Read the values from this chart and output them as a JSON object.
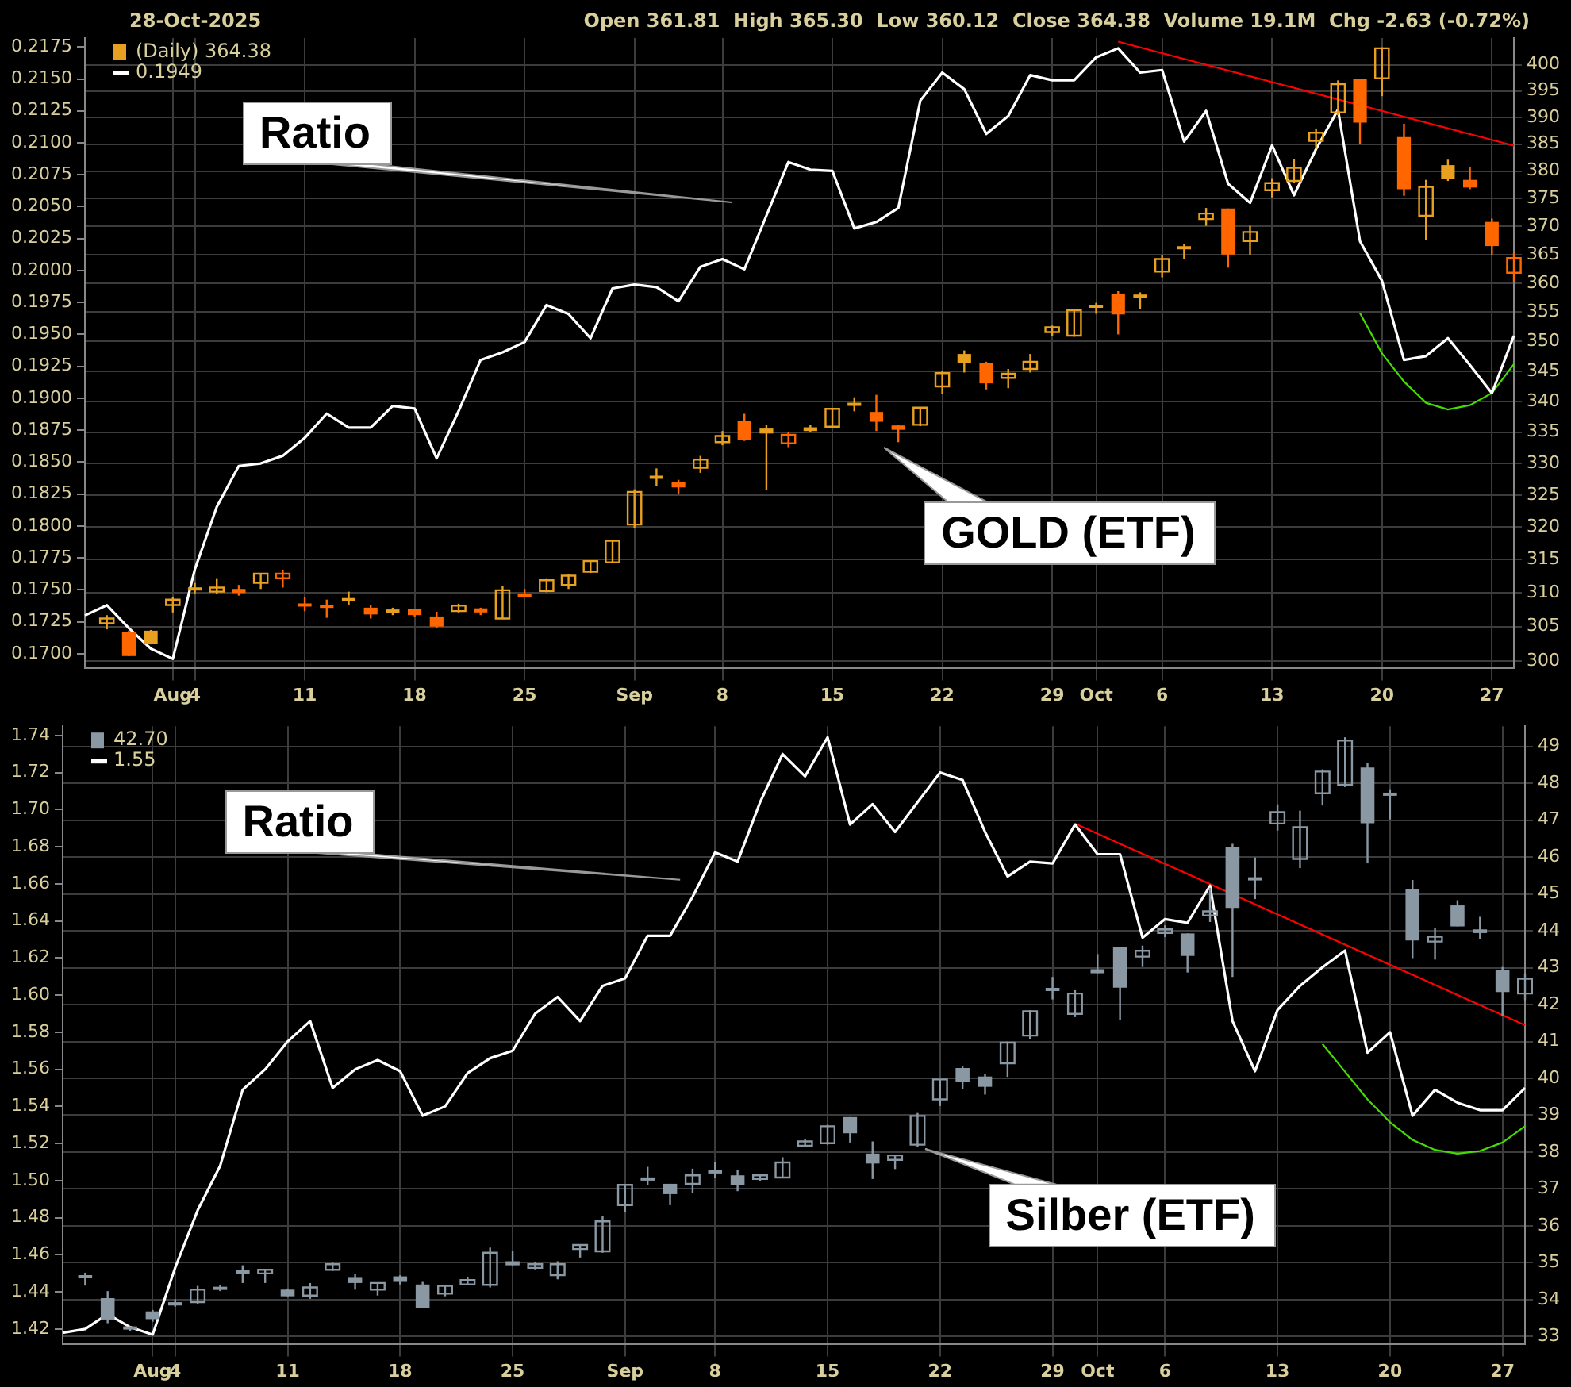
{
  "chart_data": [
    {
      "type": "candlestick",
      "log": "y2",
      "grid": true,
      "legend": "top left",
      "categories": [
        null,
        null,
        null,
        null,
        "Aug",
        "4",
        null,
        null,
        null,
        null,
        "11",
        null,
        null,
        null,
        null,
        "18",
        null,
        null,
        null,
        null,
        "25",
        null,
        null,
        null,
        null,
        "Sep",
        null,
        null,
        null,
        "8",
        null,
        null,
        null,
        null,
        "15",
        null,
        null,
        null,
        null,
        "22",
        null,
        null,
        null,
        null,
        "29",
        null,
        "Oct",
        null,
        null,
        "6",
        null,
        null,
        null,
        null,
        "13",
        null,
        null,
        null,
        null,
        "20",
        null,
        null,
        null,
        null,
        "27",
        null
      ],
      "ylim": [
        0.1689,
        0.2182
      ],
      "yticks": [
        {
          "value": 0.17,
          "label": "0.1700"
        },
        {
          "value": 0.1725,
          "label": "0.1725"
        },
        {
          "value": 0.175,
          "label": "0.1750"
        },
        {
          "value": 0.1775,
          "label": "0.1775"
        },
        {
          "value": 0.18,
          "label": "0.1800"
        },
        {
          "value": 0.1825,
          "label": "0.1825"
        },
        {
          "value": 0.185,
          "label": "0.1850"
        },
        {
          "value": 0.1875,
          "label": "0.1875"
        },
        {
          "value": 0.19,
          "label": "0.1900"
        },
        {
          "value": 0.1925,
          "label": "0.1925"
        },
        {
          "value": 0.195,
          "label": "0.1950"
        },
        {
          "value": 0.1975,
          "label": "0.1975"
        },
        {
          "value": 0.2,
          "label": "0.2000"
        },
        {
          "value": 0.2025,
          "label": "0.2025"
        },
        {
          "value": 0.205,
          "label": "0.2050"
        },
        {
          "value": 0.2075,
          "label": "0.2075"
        },
        {
          "value": 0.21,
          "label": "0.2100"
        },
        {
          "value": 0.2125,
          "label": "0.2125"
        },
        {
          "value": 0.215,
          "label": "0.2150"
        },
        {
          "value": 0.2175,
          "label": "0.2175"
        }
      ],
      "y2lim": [
        299,
        405.2
      ],
      "y2ticks": [
        300,
        305,
        310,
        315,
        320,
        325,
        330,
        335,
        340,
        345,
        350,
        355,
        360,
        365,
        370,
        375,
        380,
        385,
        390,
        395,
        400
      ],
      "annotations": [
        "28-Oct-2025",
        "Open 361.81  High 365.30  Low 360.12  Close 364.38  Volume 19.1M  Chg -2.63 (-0.72%)",
        "Ratio",
        "GOLD (ETF)"
      ],
      "series": [
        {
          "name": "(Daily) 364.38",
          "axis": "y2",
          "color": "#e8a020",
          "ohlc": [
            null,
            [
              305.5,
              306.7,
              304.6,
              306.2
            ],
            [
              304.2,
              304.4,
              300.7,
              300.7
            ],
            [
              304.4,
              304.5,
              302.4,
              302.5
            ],
            [
              308.2,
              309.4,
              307.1,
              309.0
            ],
            [
              310.6,
              311.5,
              309.8,
              310.6
            ],
            [
              310.2,
              312.1,
              309.8,
              310.8
            ],
            [
              310.6,
              311.2,
              309.6,
              310.0
            ],
            [
              311.5,
              312.9,
              310.6,
              312.9
            ],
            [
              312.2,
              313.5,
              310.8,
              312.9
            ],
            [
              308.2,
              309.4,
              307.3,
              308.2
            ],
            [
              308.0,
              309.0,
              306.3,
              308.0
            ],
            [
              309.0,
              310.2,
              308.2,
              309.0
            ],
            [
              307.8,
              308.2,
              306.2,
              306.8
            ],
            [
              307.3,
              307.8,
              306.7,
              307.3
            ],
            [
              307.6,
              307.6,
              306.5,
              306.7
            ],
            [
              306.5,
              307.2,
              304.8,
              305.0
            ],
            [
              307.3,
              308.4,
              307.1,
              308.1
            ],
            [
              307.7,
              307.8,
              306.7,
              307.1
            ],
            [
              306.2,
              311.0,
              306.2,
              310.4
            ],
            [
              309.8,
              310.6,
              309.4,
              309.5
            ],
            [
              310.3,
              312.1,
              310.1,
              311.9
            ],
            [
              311.2,
              312.8,
              310.6,
              312.6
            ],
            [
              313.2,
              314.8,
              313.0,
              314.8
            ],
            [
              314.6,
              317.9,
              314.6,
              317.9
            ],
            [
              320.4,
              325.9,
              319.9,
              325.5
            ],
            [
              327.8,
              329.2,
              326.4,
              327.8
            ],
            [
              327.0,
              327.4,
              325.2,
              326.2
            ],
            [
              329.3,
              331.2,
              328.5,
              330.6
            ],
            [
              333.4,
              335.2,
              332.9,
              334.4
            ],
            [
              336.8,
              338.0,
              333.6,
              333.8
            ],
            [
              335.6,
              336.2,
              325.8,
              334.8
            ],
            [
              333.2,
              335.0,
              332.6,
              334.6
            ],
            [
              335.8,
              336.2,
              335.0,
              335.2
            ],
            [
              335.9,
              338.8,
              335.9,
              338.8
            ],
            [
              339.8,
              340.7,
              338.4,
              339.3
            ],
            [
              338.3,
              341.1,
              335.2,
              336.7
            ],
            [
              336.1,
              336.1,
              333.4,
              335.4
            ],
            [
              336.2,
              339.0,
              336.0,
              339.0
            ],
            [
              342.5,
              345.0,
              341.3,
              344.7
            ],
            [
              347.9,
              348.5,
              344.8,
              346.4
            ],
            [
              346.4,
              346.6,
              342.0,
              343.0
            ],
            [
              343.9,
              345.4,
              342.2,
              344.6
            ],
            [
              345.4,
              347.9,
              344.8,
              346.6
            ],
            [
              351.6,
              352.7,
              351.0,
              352.4
            ],
            [
              351.0,
              355.4,
              350.8,
              355.3
            ],
            [
              356.0,
              356.6,
              354.7,
              356.0
            ],
            [
              358.2,
              358.6,
              351.2,
              354.6
            ],
            [
              357.5,
              358.4,
              355.5,
              358.0
            ],
            [
              362.0,
              364.9,
              361.0,
              364.2
            ],
            [
              366.2,
              366.9,
              364.2,
              366.2
            ],
            [
              371.3,
              373.3,
              370.1,
              372.3
            ],
            [
              373.2,
              373.2,
              362.7,
              365.0
            ],
            [
              367.4,
              370.1,
              365.0,
              369.0
            ],
            [
              376.5,
              378.7,
              375.2,
              377.8
            ],
            [
              378.2,
              382.2,
              377.8,
              380.6
            ],
            [
              385.6,
              387.9,
              384.1,
              387.1
            ],
            [
              390.9,
              397.0,
              390.4,
              396.3
            ],
            [
              397.3,
              397.3,
              385.0,
              389.0
            ],
            [
              397.4,
              403.4,
              394.0,
              403.2
            ],
            [
              386.3,
              388.8,
              375.5,
              376.7
            ],
            [
              371.9,
              378.4,
              367.5,
              377.1
            ],
            [
              381.1,
              382.1,
              378.2,
              378.5
            ],
            [
              378.4,
              380.8,
              376.7,
              377.0
            ],
            [
              370.8,
              371.4,
              365.0,
              366.5
            ],
            [
              361.81,
              365.3,
              360.12,
              364.38
            ]
          ],
          "colors": [
            null,
            "#e8a020",
            "#ff6600",
            "#e8a020",
            "#e8a020",
            "#e8a020",
            "#e8a020",
            "#ff6600",
            "#e8a020",
            "#ff6600",
            "#ff6600",
            "#ff6600",
            "#e8a020",
            "#ff6600",
            "#e8a020",
            "#ff6600",
            "#ff6600",
            "#e8a020",
            "#ff6600",
            "#e8a020",
            "#ff6600",
            "#e8a020",
            "#e8a020",
            "#e8a020",
            "#e8a020",
            "#e8a020",
            "#e8a020",
            "#ff6600",
            "#e8a020",
            "#e8a020",
            "#ff6600",
            "#e8a020",
            "#ff6600",
            "#e8a020",
            "#e8a020",
            "#e8a020",
            "#ff6600",
            "#ff6600",
            "#e8a020",
            "#e8a020",
            "#e8a020",
            "#ff6600",
            "#e8a020",
            "#e8a020",
            "#e8a020",
            "#e8a020",
            "#e8a020",
            "#ff6600",
            "#e8a020",
            "#e8a020",
            "#e8a020",
            "#e8a020",
            "#ff6600",
            "#e8a020",
            "#e8a020",
            "#e8a020",
            "#e8a020",
            "#e8a020",
            "#ff6600",
            "#e8a020",
            "#ff6600",
            "#e8a020",
            "#e8a020",
            "#ff6600",
            "#ff6600",
            "#ff6600"
          ]
        },
        {
          "type": "line",
          "name": "0.1949",
          "color": "#ffffff",
          "values": [
            0.173,
            0.1738,
            0.172,
            0.1704,
            0.1696,
            0.1766,
            0.1815,
            0.1847,
            0.1849,
            0.1855,
            0.1869,
            0.1888,
            0.1877,
            0.1877,
            0.1894,
            0.1892,
            0.1853,
            0.189,
            0.193,
            0.1936,
            0.1944,
            0.1973,
            0.1966,
            0.1947,
            0.1986,
            0.1989,
            0.1987,
            0.1976,
            0.2003,
            0.2009,
            0.2001,
            0.2043,
            0.2085,
            0.2079,
            0.2078,
            0.2033,
            0.2038,
            0.2049,
            0.2133,
            0.2155,
            0.2142,
            0.2107,
            0.2121,
            0.2153,
            0.2149,
            0.2149,
            0.2167,
            0.2174,
            0.2155,
            0.2157,
            0.2101,
            0.2125,
            0.2068,
            0.2053,
            0.2098,
            0.2059,
            0.2095,
            0.2126,
            0.2023,
            0.1992,
            0.193,
            0.1933,
            0.1947,
            0.1926,
            0.1904,
            0.1949
          ]
        },
        {
          "type": "line",
          "axis": "y2",
          "color": "#ff0000",
          "values": [
            null,
            null,
            null,
            null,
            null,
            null,
            null,
            null,
            null,
            null,
            null,
            null,
            null,
            null,
            null,
            null,
            null,
            null,
            null,
            null,
            null,
            null,
            null,
            null,
            null,
            null,
            null,
            null,
            null,
            null,
            null,
            null,
            null,
            null,
            null,
            null,
            null,
            null,
            null,
            null,
            null,
            null,
            null,
            null,
            null,
            null,
            null,
            404.5,
            null,
            null,
            null,
            null,
            null,
            null,
            null,
            null,
            null,
            null,
            null,
            null,
            null,
            null,
            null,
            null,
            null,
            384.7
          ]
        },
        {
          "type": "line",
          "axis": "y2",
          "color": "#44dd00",
          "values": [
            null,
            null,
            null,
            null,
            null,
            null,
            null,
            null,
            null,
            null,
            null,
            null,
            null,
            null,
            null,
            null,
            null,
            null,
            null,
            null,
            null,
            null,
            null,
            null,
            null,
            null,
            null,
            null,
            null,
            null,
            null,
            null,
            null,
            null,
            null,
            null,
            null,
            null,
            null,
            null,
            null,
            null,
            null,
            null,
            null,
            null,
            null,
            null,
            null,
            null,
            null,
            null,
            null,
            null,
            null,
            null,
            null,
            null,
            354.8,
            348.0,
            343.3,
            339.8,
            338.7,
            339.4,
            341.4,
            346.2
          ]
        }
      ]
    },
    {
      "type": "candlestick",
      "grid": true,
      "legend": "top left",
      "categories": [
        null,
        null,
        null,
        null,
        "Aug",
        "4",
        null,
        null,
        null,
        null,
        "11",
        null,
        null,
        null,
        null,
        "18",
        null,
        null,
        null,
        null,
        "25",
        null,
        null,
        null,
        null,
        "Sep",
        null,
        null,
        null,
        "8",
        null,
        null,
        null,
        null,
        "15",
        null,
        null,
        null,
        null,
        "22",
        null,
        null,
        null,
        null,
        "29",
        null,
        "Oct",
        null,
        null,
        "6",
        null,
        null,
        null,
        null,
        "13",
        null,
        null,
        null,
        null,
        "20",
        null,
        null,
        null,
        null,
        "27",
        null
      ],
      "ylim": [
        1.412,
        1.745
      ],
      "yticks": [
        1.42,
        1.44,
        1.46,
        1.48,
        {
          "value": 1.5,
          "label": "1.50"
        },
        1.52,
        1.54,
        1.56,
        1.58,
        {
          "value": 1.6,
          "label": "1.60"
        },
        1.62,
        1.64,
        1.66,
        1.68,
        {
          "value": 1.7,
          "label": "1.70"
        },
        1.72,
        1.74
      ],
      "y2lim": [
        32.8,
        49.55
      ],
      "y2ticks": [
        33,
        34,
        35,
        36,
        37,
        38,
        39,
        40,
        41,
        42,
        43,
        44,
        45,
        46,
        47,
        48,
        49
      ],
      "annotations": [
        "Ratio",
        "Silber (ETF)"
      ],
      "series": [
        {
          "name": "42.70",
          "axis": "y2",
          "color": "#8a98a4",
          "ohlc": [
            null,
            [
              34.62,
              34.73,
              34.38,
              34.62
            ],
            [
              34.04,
              34.23,
              33.36,
              33.46
            ],
            [
              33.23,
              33.27,
              33.14,
              33.23
            ],
            [
              33.68,
              33.72,
              33.4,
              33.47
            ],
            [
              33.93,
              34.01,
              33.81,
              33.84
            ],
            [
              33.93,
              34.37,
              33.89,
              34.27
            ],
            [
              34.34,
              34.4,
              34.23,
              34.27
            ],
            [
              34.8,
              34.93,
              34.45,
              34.69
            ],
            [
              34.71,
              34.81,
              34.45,
              34.81
            ],
            [
              34.27,
              34.3,
              34.09,
              34.09
            ],
            [
              34.11,
              34.45,
              34.02,
              34.33
            ],
            [
              34.81,
              35.0,
              34.78,
              34.96
            ],
            [
              34.59,
              34.7,
              34.27,
              34.45
            ],
            [
              34.27,
              34.45,
              34.11,
              34.45
            ],
            [
              34.63,
              34.66,
              34.41,
              34.48
            ],
            [
              34.41,
              34.48,
              33.78,
              33.78
            ],
            [
              34.16,
              34.37,
              34.09,
              34.37
            ],
            [
              34.41,
              34.62,
              34.41,
              34.53
            ],
            [
              34.4,
              35.41,
              34.33,
              35.27
            ],
            [
              35.04,
              35.31,
              34.93,
              34.93
            ],
            [
              34.86,
              35.03,
              34.82,
              34.96
            ],
            [
              34.66,
              35.04,
              34.55,
              34.96
            ],
            [
              35.37,
              35.48,
              35.14,
              35.48
            ],
            [
              35.31,
              36.26,
              35.27,
              36.12
            ],
            [
              36.56,
              37.11,
              36.38,
              37.11
            ],
            [
              37.27,
              37.6,
              37.1,
              37.27
            ],
            [
              37.14,
              37.14,
              36.56,
              36.86
            ],
            [
              37.14,
              37.55,
              36.9,
              37.37
            ],
            [
              37.51,
              37.74,
              37.31,
              37.42
            ],
            [
              37.37,
              37.51,
              36.94,
              37.1
            ],
            [
              37.27,
              37.37,
              37.21,
              37.37
            ],
            [
              37.31,
              37.86,
              37.29,
              37.72
            ],
            [
              38.17,
              38.36,
              38.13,
              38.29
            ],
            [
              38.24,
              38.74,
              38.2,
              38.7
            ],
            [
              38.95,
              38.95,
              38.26,
              38.51
            ],
            [
              37.96,
              38.29,
              37.27,
              37.69
            ],
            [
              37.79,
              37.91,
              37.54,
              37.91
            ],
            [
              38.2,
              39.06,
              38.13,
              38.98
            ],
            [
              39.43,
              39.97,
              39.25,
              39.97
            ],
            [
              40.28,
              40.32,
              39.7,
              39.91
            ],
            [
              40.05,
              40.12,
              39.56,
              39.77
            ],
            [
              40.41,
              41.0,
              40.04,
              40.97
            ],
            [
              41.16,
              41.85,
              41.07,
              41.82
            ],
            [
              42.41,
              42.75,
              42.14,
              42.41
            ],
            [
              41.75,
              42.39,
              41.66,
              42.3
            ],
            [
              42.96,
              43.37,
              42.85,
              42.85
            ],
            [
              43.56,
              43.56,
              41.59,
              42.46
            ],
            [
              43.3,
              43.6,
              43.02,
              43.46
            ],
            [
              43.94,
              44.15,
              43.83,
              44.04
            ],
            [
              43.93,
              43.93,
              42.87,
              43.32
            ],
            [
              44.42,
              45.17,
              44.24,
              44.53
            ],
            [
              46.26,
              46.36,
              42.75,
              44.62
            ],
            [
              45.44,
              45.99,
              44.86,
              45.38
            ],
            [
              46.91,
              47.43,
              46.72,
              47.22
            ],
            [
              45.95,
              47.26,
              45.7,
              46.81
            ],
            [
              47.73,
              48.38,
              47.4,
              48.32
            ],
            [
              47.96,
              49.25,
              47.9,
              49.16
            ],
            [
              48.43,
              48.55,
              45.83,
              46.92
            ],
            [
              47.74,
              47.84,
              47.02,
              47.67
            ],
            [
              45.14,
              45.38,
              43.26,
              43.74
            ],
            [
              43.71,
              44.08,
              43.22,
              43.84
            ],
            [
              44.69,
              44.83,
              44.12,
              44.12
            ],
            [
              44.04,
              44.38,
              43.78,
              43.94
            ],
            [
              42.94,
              43.02,
              41.68,
              42.34
            ],
            [
              42.3,
              42.85,
              42.12,
              42.7
            ]
          ]
        },
        {
          "type": "line",
          "name": "1.55",
          "color": "#ffffff",
          "values": [
            1.418,
            1.42,
            1.428,
            1.421,
            1.417,
            1.453,
            1.484,
            1.508,
            1.549,
            1.56,
            1.575,
            1.586,
            1.55,
            1.56,
            1.565,
            1.559,
            1.535,
            1.54,
            1.558,
            1.566,
            1.57,
            1.59,
            1.599,
            1.586,
            1.605,
            1.609,
            1.632,
            1.632,
            1.653,
            1.677,
            1.672,
            1.704,
            1.73,
            1.718,
            1.739,
            1.692,
            1.703,
            1.688,
            1.704,
            1.72,
            1.716,
            1.688,
            1.664,
            1.672,
            1.671,
            1.692,
            1.676,
            1.676,
            1.631,
            1.641,
            1.639,
            1.659,
            1.586,
            1.559,
            1.592,
            1.605,
            1.615,
            1.624,
            1.569,
            1.58,
            1.535,
            1.549,
            1.542,
            1.538,
            1.538,
            1.55
          ]
        },
        {
          "type": "line",
          "axis": "y2",
          "color": "#ff0000",
          "values": [
            null,
            null,
            null,
            null,
            null,
            null,
            null,
            null,
            null,
            null,
            null,
            null,
            null,
            null,
            null,
            null,
            null,
            null,
            null,
            null,
            null,
            null,
            null,
            null,
            null,
            null,
            null,
            null,
            null,
            null,
            null,
            null,
            null,
            null,
            null,
            null,
            null,
            null,
            null,
            null,
            null,
            null,
            null,
            null,
            null,
            46.91,
            null,
            null,
            null,
            null,
            null,
            null,
            null,
            null,
            null,
            null,
            null,
            null,
            null,
            null,
            null,
            null,
            null,
            null,
            null,
            41.44
          ]
        },
        {
          "type": "line",
          "axis": "y2",
          "color": "#44dd00",
          "values": [
            null,
            null,
            null,
            null,
            null,
            null,
            null,
            null,
            null,
            null,
            null,
            null,
            null,
            null,
            null,
            null,
            null,
            null,
            null,
            null,
            null,
            null,
            null,
            null,
            null,
            null,
            null,
            null,
            null,
            null,
            null,
            null,
            null,
            null,
            null,
            null,
            null,
            null,
            null,
            null,
            null,
            null,
            null,
            null,
            null,
            null,
            null,
            null,
            null,
            null,
            null,
            null,
            null,
            null,
            null,
            null,
            40.93,
            40.18,
            39.43,
            38.81,
            38.33,
            38.06,
            37.96,
            38.03,
            38.26,
            38.7
          ]
        }
      ]
    }
  ]
}
